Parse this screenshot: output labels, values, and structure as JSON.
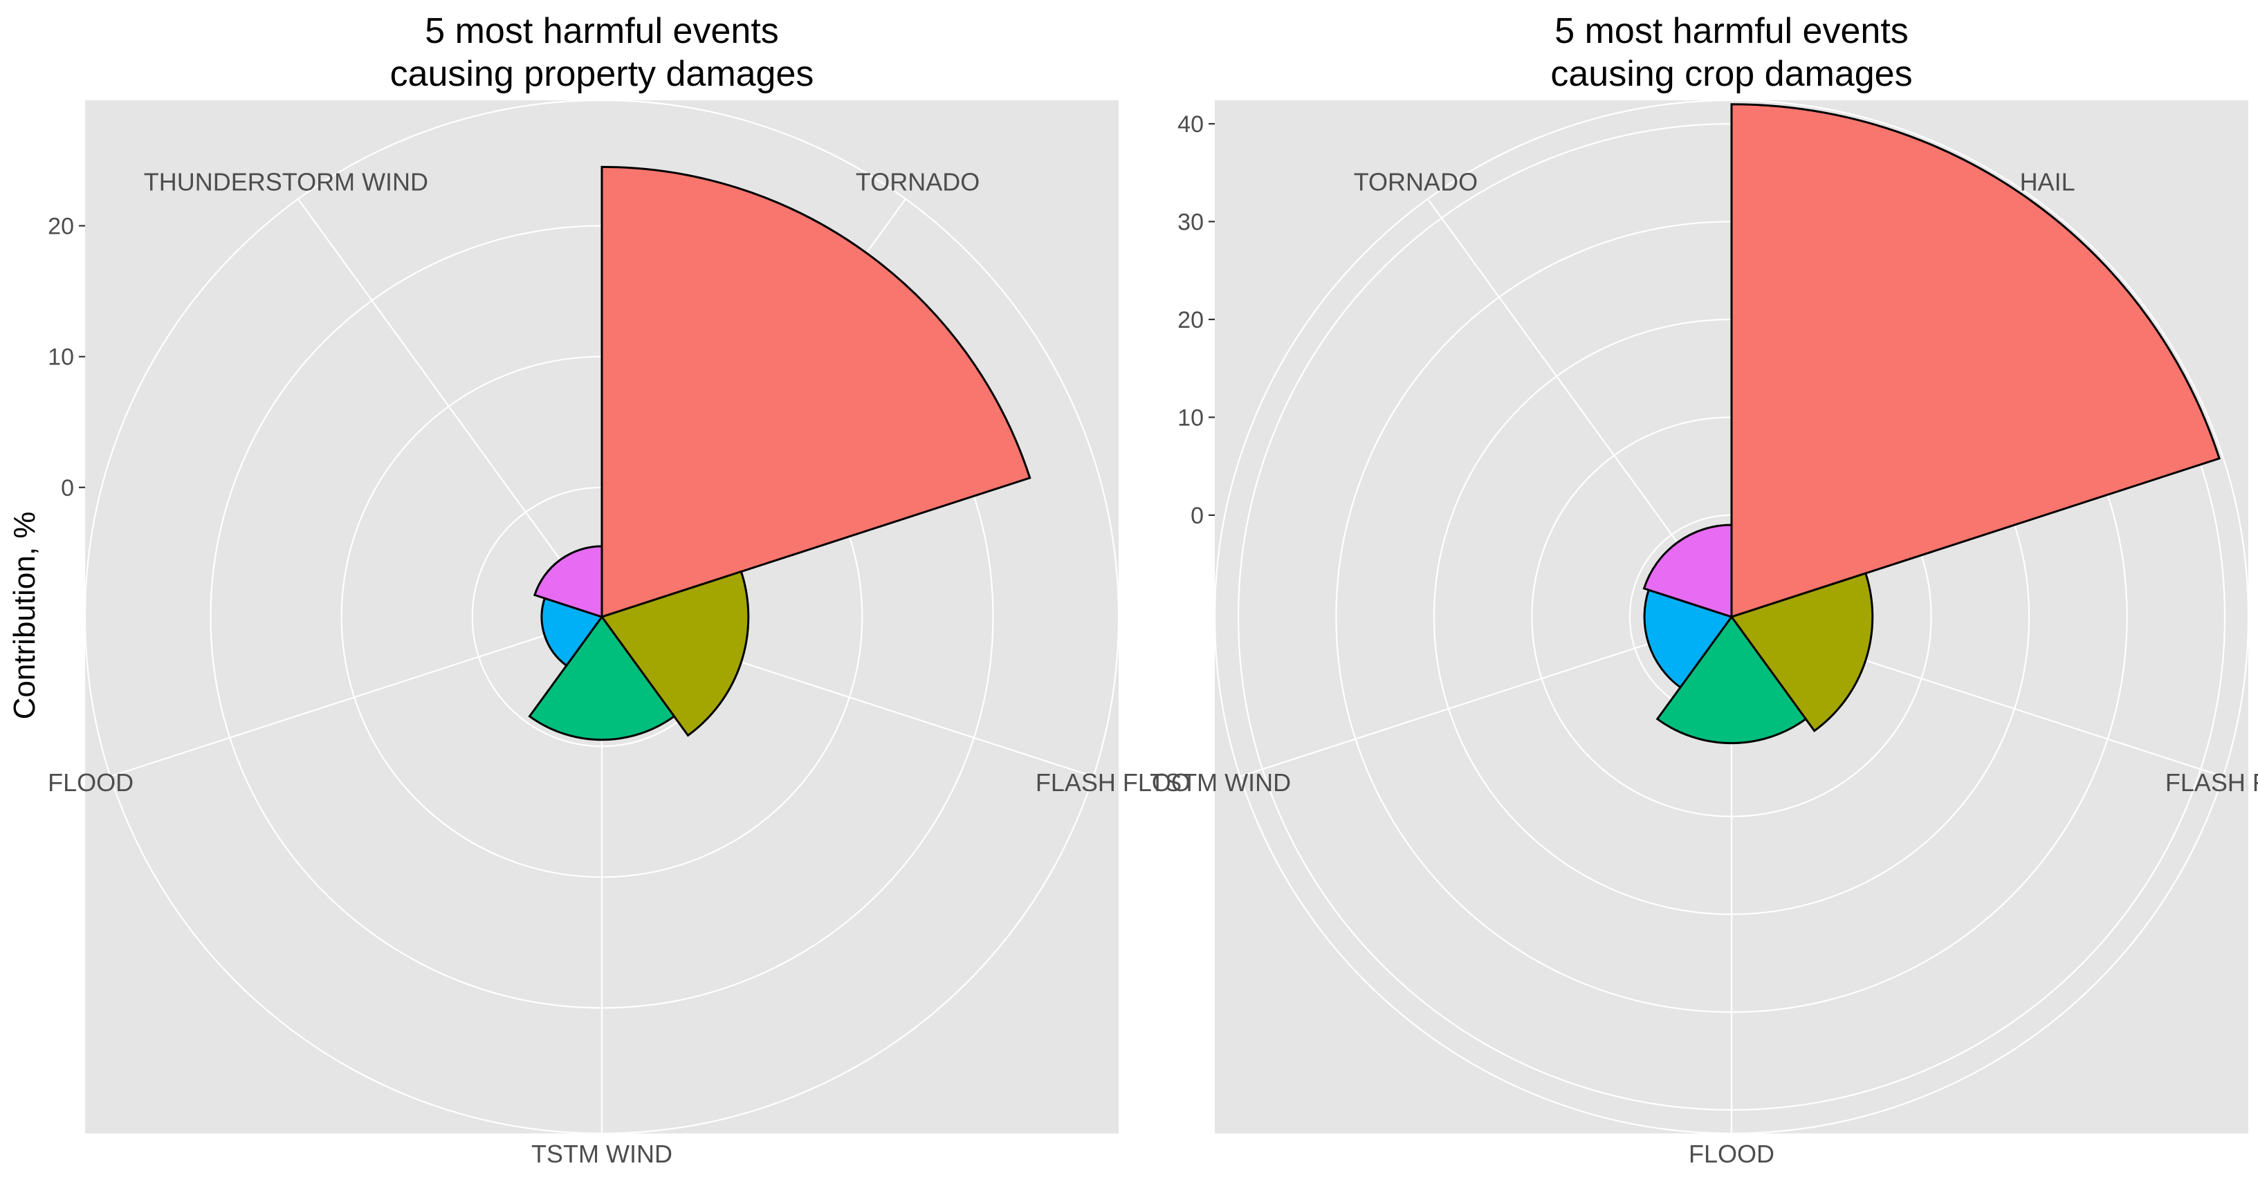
{
  "chart_data": [
    {
      "type": "polar-bar",
      "title_lines": [
        "5 most harmful events",
        "causing property damages"
      ],
      "ylabel": "Contribution, %",
      "grid": true,
      "categories": [
        "TORNADO",
        "FLASH FLOO",
        "TSTM WIND",
        "FLOOD",
        "THUNDERSTORM WIND"
      ],
      "values": [
        24.5,
        1.3,
        -0.5,
        -5.3,
        -4.5
      ],
      "y_breaks": [
        0,
        10,
        20
      ],
      "y_tick_labels": [
        "0",
        "10",
        "20"
      ],
      "ylim": [
        -9.9,
        29.6
      ],
      "colors": [
        "#F8766D",
        "#A3A500",
        "#00BF7D",
        "#00B0F6",
        "#E76BF3"
      ]
    },
    {
      "type": "polar-bar",
      "title_lines": [
        "5 most harmful events",
        "causing crop damages"
      ],
      "ylabel": "",
      "grid": true,
      "categories": [
        "HAIL",
        "FLASH FLOO",
        "FLOOD",
        "TSTM WIND",
        "TORNADO"
      ],
      "values": [
        42,
        4,
        2.5,
        -1.5,
        -1
      ],
      "y_breaks": [
        0,
        10,
        20,
        30,
        40
      ],
      "y_tick_labels": [
        "0",
        "10",
        "20",
        "30",
        "40"
      ],
      "ylim": [
        -10.4,
        42.4
      ],
      "colors": [
        "#F8766D",
        "#A3A500",
        "#00BF7D",
        "#00B0F6",
        "#E76BF3"
      ]
    }
  ]
}
